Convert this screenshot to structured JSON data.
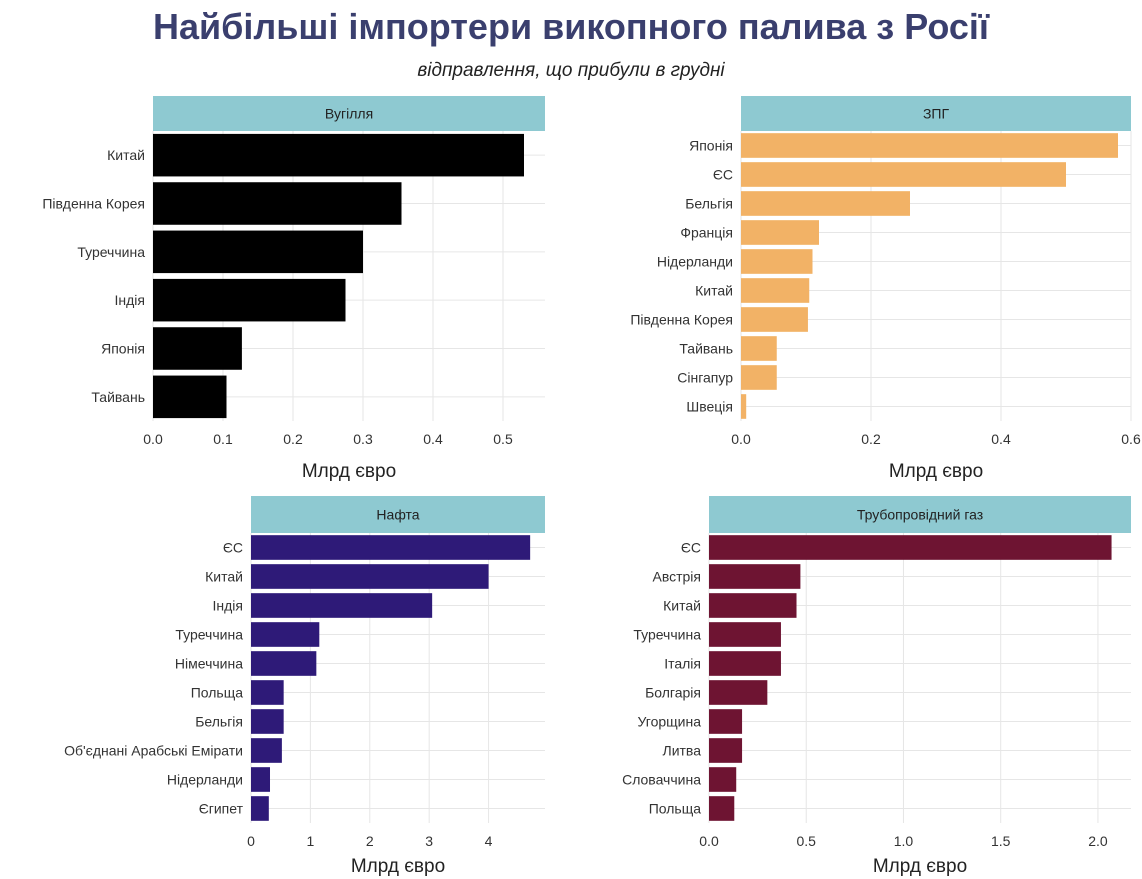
{
  "title": "Найбільші імпортери викопного палива з Росії",
  "subtitle": "відправлення, що прибули в грудні",
  "colors": {
    "strip": "#8ec9d1"
  },
  "chart_data": [
    {
      "type": "bar",
      "orientation": "horizontal",
      "title": "Вугілля",
      "color": "#000000",
      "categories": [
        "Китай",
        "Південна Корея",
        "Туреччина",
        "Індія",
        "Японія",
        "Тайвань"
      ],
      "values": [
        0.53,
        0.355,
        0.3,
        0.275,
        0.127,
        0.105
      ],
      "xlabel": "Млрд євро",
      "xticks": [
        0.0,
        0.1,
        0.2,
        0.3,
        0.4,
        0.5
      ],
      "xtick_labels": [
        "0.0",
        "0.1",
        "0.2",
        "0.3",
        "0.4",
        "0.5"
      ],
      "xlim": [
        0,
        0.56
      ],
      "grid": true
    },
    {
      "type": "bar",
      "orientation": "horizontal",
      "title": "ЗПГ",
      "color": "#f2b266",
      "categories": [
        "Японія",
        "ЄС",
        "Бельгія",
        "Франція",
        "Нідерланди",
        "Китай",
        "Південна Корея",
        "Тайвань",
        "Сінгапур",
        "Швеція"
      ],
      "values": [
        0.58,
        0.5,
        0.26,
        0.12,
        0.11,
        0.105,
        0.103,
        0.055,
        0.055,
        0.008
      ],
      "xlabel": "Млрд євро",
      "xticks": [
        0.0,
        0.2,
        0.4,
        0.6
      ],
      "xtick_labels": [
        "0.0",
        "0.2",
        "0.4",
        "0.6"
      ],
      "xlim": [
        0,
        0.6
      ],
      "grid": true
    },
    {
      "type": "bar",
      "orientation": "horizontal",
      "title": "Нафта",
      "color": "#2e1a78",
      "categories": [
        "ЄС",
        "Китай",
        "Індія",
        "Туреччина",
        "Німеччина",
        "Польща",
        "Бельгія",
        "Об'єднані Арабські Емірати",
        "Нідерланди",
        "Єгипет"
      ],
      "values": [
        4.7,
        4.0,
        3.05,
        1.15,
        1.1,
        0.55,
        0.55,
        0.52,
        0.32,
        0.3
      ],
      "xlabel": "Млрд євро",
      "xticks": [
        0,
        1,
        2,
        3,
        4
      ],
      "xtick_labels": [
        "0",
        "1",
        "2",
        "3",
        "4"
      ],
      "xlim": [
        0,
        4.95
      ],
      "grid": true
    },
    {
      "type": "bar",
      "orientation": "horizontal",
      "title": "Трубопровідний газ",
      "color": "#6e1432",
      "categories": [
        "ЄС",
        "Австрія",
        "Китай",
        "Туреччина",
        "Італія",
        "Болгарія",
        "Угорщина",
        "Литва",
        "Словаччина",
        "Польща"
      ],
      "values": [
        2.07,
        0.47,
        0.45,
        0.37,
        0.37,
        0.3,
        0.17,
        0.17,
        0.14,
        0.13
      ],
      "xlabel": "Млрд євро",
      "xticks": [
        0.0,
        0.5,
        1.0,
        1.5,
        2.0
      ],
      "xtick_labels": [
        "0.0",
        "0.5",
        "1.0",
        "1.5",
        "2.0"
      ],
      "xlim": [
        0,
        2.17
      ],
      "grid": true
    }
  ]
}
